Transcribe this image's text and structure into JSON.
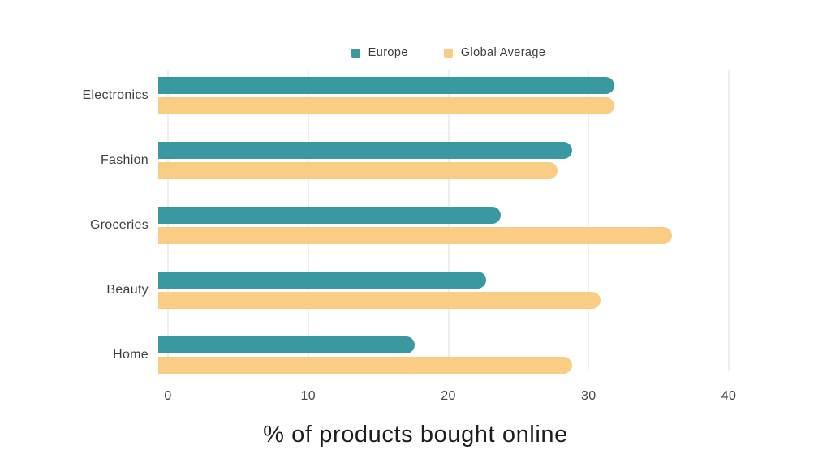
{
  "chart_data": {
    "type": "bar",
    "orientation": "horizontal",
    "title": "% of products bought online",
    "categories": [
      "Electronics",
      "Fashion",
      "Groceries",
      "Beauty",
      "Home"
    ],
    "series": [
      {
        "name": "Europe",
        "color": "#3A98A2",
        "values": [
          32,
          29,
          24,
          23,
          18
        ]
      },
      {
        "name": "Global Average",
        "color": "#FACD85",
        "values": [
          32,
          28,
          36,
          31,
          29
        ]
      }
    ],
    "xlim": [
      0,
      40
    ],
    "xticks": [
      0,
      10,
      20,
      30,
      40
    ],
    "grid": "vertical-gridlines",
    "legend_position": "top-center"
  },
  "colors": {
    "background": "#FFFFFF",
    "gridline": "#DEDEDE",
    "axis_text": "#474747",
    "category_text": "#3F3F3F",
    "legend_text": "#3F3F3F",
    "title_text": "#1E1E1E"
  }
}
